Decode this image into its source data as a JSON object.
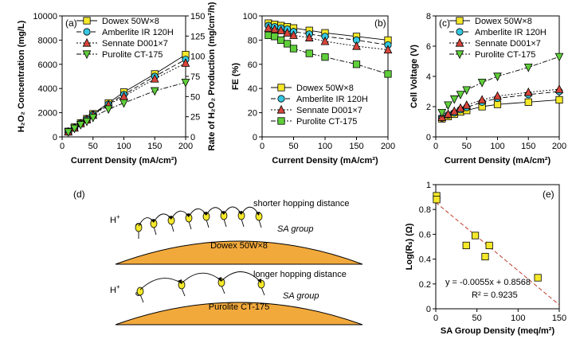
{
  "chart_data": [
    {
      "panel": "(a)",
      "type": "line",
      "xlabel": "Current Density (mA/cm²)",
      "ylabel": "H₂O₂ Concentration (mg/L)",
      "ylabel_right": "Rate of H₂O₂ Production (mg/cm²/h)",
      "xlim": [
        0,
        200
      ],
      "ylim": [
        0,
        10000
      ],
      "ylim_right": [
        0,
        150
      ],
      "xticks": [
        0,
        50,
        100,
        150,
        200
      ],
      "yticks": [
        0,
        2000,
        4000,
        6000,
        8000,
        10000
      ],
      "yticks_right": [
        0,
        25,
        50,
        75,
        100,
        125,
        150
      ],
      "legend_position": "top-left",
      "x": [
        10,
        20,
        30,
        40,
        50,
        75,
        100,
        150,
        200
      ],
      "series": [
        {
          "name": "Dowex 50W×8",
          "color": "#f5e92a",
          "marker": "square",
          "dash": "",
          "values": [
            450,
            800,
            1150,
            1500,
            1900,
            2800,
            3700,
            5200,
            6800
          ]
        },
        {
          "name": "Amberlite IR 120H",
          "color": "#35c7e0",
          "marker": "circle",
          "dash": "6,3",
          "values": [
            430,
            770,
            1120,
            1460,
            1850,
            2700,
            3500,
            5000,
            6400
          ]
        },
        {
          "name": "Sennate D001×7",
          "color": "#d9453a",
          "marker": "triangle-up",
          "dash": "2,2",
          "values": [
            420,
            750,
            1100,
            1420,
            1800,
            2650,
            3350,
            4800,
            6100
          ]
        },
        {
          "name": "Purolite CT-175",
          "color": "#5fcf3a",
          "marker": "triangle-down",
          "dash": "6,2,2,2",
          "values": [
            400,
            700,
            1000,
            1280,
            1600,
            2300,
            2800,
            3800,
            4500
          ]
        }
      ]
    },
    {
      "panel": "(b)",
      "type": "line",
      "xlabel": "Current Density (mA/cm²)",
      "ylabel": "FE (%)",
      "xlim": [
        0,
        200
      ],
      "ylim": [
        0,
        100
      ],
      "xticks": [
        0,
        50,
        100,
        150,
        200
      ],
      "yticks": [
        0,
        20,
        40,
        60,
        80,
        100
      ],
      "legend_position": "bottom-left",
      "x": [
        10,
        20,
        30,
        40,
        50,
        75,
        100,
        150,
        200
      ],
      "series": [
        {
          "name": "Dowex 50W×8",
          "color": "#f5e92a",
          "marker": "square",
          "dash": "",
          "values": [
            94,
            93,
            92,
            91,
            90,
            88,
            86,
            83,
            80
          ]
        },
        {
          "name": "Amberlite IR 120H",
          "color": "#35c7e0",
          "marker": "circle",
          "dash": "6,3",
          "values": [
            92,
            91,
            90,
            89,
            87,
            85,
            83,
            80,
            76
          ]
        },
        {
          "name": "Sennate D001×7",
          "color": "#d9453a",
          "marker": "triangle-up",
          "dash": "2,2",
          "values": [
            90,
            89,
            88,
            86,
            84,
            82,
            79,
            75,
            72
          ]
        },
        {
          "name": "Purolite CT-175",
          "color": "#5fcf3a",
          "marker": "square",
          "dash": "6,2,2,2",
          "values": [
            84,
            83,
            80,
            77,
            73,
            69,
            66,
            60,
            52
          ]
        }
      ]
    },
    {
      "panel": "(c)",
      "type": "line",
      "xlabel": "Current Density (mA/cm²)",
      "ylabel": "Cell Voltage (V)",
      "xlim": [
        0,
        200
      ],
      "ylim": [
        0,
        8
      ],
      "xticks": [
        0,
        50,
        100,
        150,
        200
      ],
      "yticks": [
        0,
        2,
        4,
        6,
        8
      ],
      "legend_position": "top-left",
      "x": [
        10,
        20,
        30,
        40,
        50,
        75,
        100,
        150,
        200
      ],
      "series": [
        {
          "name": "Dowex 50W×8",
          "color": "#f5e92a",
          "marker": "square",
          "dash": "",
          "values": [
            1.2,
            1.35,
            1.5,
            1.65,
            1.75,
            2.0,
            2.15,
            2.3,
            2.45
          ]
        },
        {
          "name": "Amberlite IR 120H",
          "color": "#35c7e0",
          "marker": "circle",
          "dash": "6,3",
          "values": [
            1.25,
            1.45,
            1.6,
            1.8,
            1.95,
            2.3,
            2.55,
            2.8,
            3.0
          ]
        },
        {
          "name": "Sennate D001×7",
          "color": "#d9453a",
          "marker": "triangle-up",
          "dash": "2,2",
          "values": [
            1.3,
            1.5,
            1.7,
            1.9,
            2.1,
            2.45,
            2.7,
            2.95,
            3.15
          ]
        },
        {
          "name": "Purolite CT-175",
          "color": "#5fcf3a",
          "marker": "triangle-down",
          "dash": "6,2,2,2",
          "values": [
            1.6,
            2.1,
            2.5,
            2.8,
            3.1,
            3.6,
            4.0,
            4.6,
            5.3
          ]
        }
      ]
    },
    {
      "panel": "(e)",
      "type": "scatter",
      "xlabel": "SA Group Density (meq/m²)",
      "ylabel": "Log(Rₛ) (Ω)",
      "xlim": [
        0,
        150
      ],
      "ylim": [
        0,
        1.0
      ],
      "xticks": [
        0,
        50,
        100,
        150
      ],
      "yticks": [
        0,
        0.2,
        0.4,
        0.6,
        0.8,
        1.0
      ],
      "points": {
        "color": "#f5e92a",
        "x": [
          1,
          1,
          37,
          48,
          60,
          65,
          124
        ],
        "y": [
          0.91,
          0.88,
          0.51,
          0.59,
          0.42,
          0.51,
          0.25
        ]
      },
      "trendline": {
        "slope": -0.0055,
        "intercept": 0.8568,
        "color": "#c0392b"
      },
      "annotations": [
        "y = -0.0055x + 0.8568",
        "R² = 0.9235"
      ]
    }
  ],
  "diagram": {
    "panel": "(d)",
    "top": {
      "proton": "H+",
      "note": "shorter hopping distance",
      "group_label": "SA group",
      "resin": "Dowex 50W×8"
    },
    "bottom": {
      "proton": "H+",
      "note": "longer hopping distance",
      "group_label": "SA group",
      "resin": "Purolite CT-175"
    },
    "colors": {
      "resin_fill": "#f2a93b",
      "group_fill": "#f5e92a",
      "proton_fill": "#9a9a9a"
    }
  }
}
